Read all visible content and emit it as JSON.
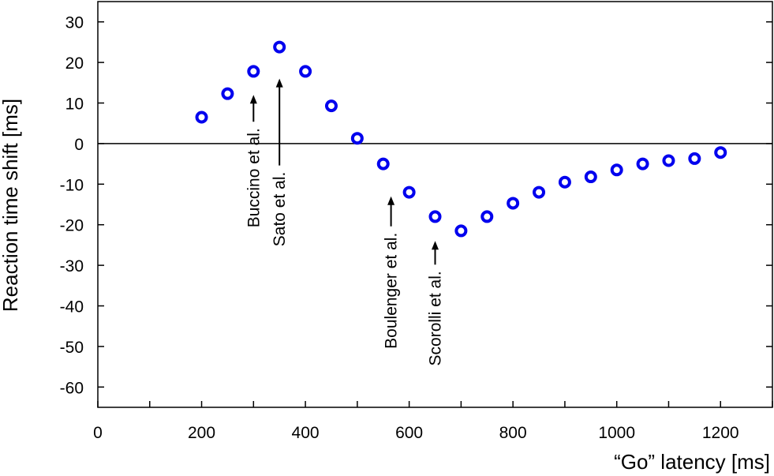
{
  "chart_data": {
    "type": "scatter",
    "xlabel": "“Go” latency  [ms]",
    "ylabel": "Reaction time shift  [ms]",
    "xlim": [
      0,
      1300
    ],
    "ylim": [
      -65,
      35
    ],
    "xticks": [
      0,
      100,
      200,
      300,
      400,
      500,
      600,
      700,
      800,
      900,
      1000,
      1100,
      1200,
      1300
    ],
    "xtick_labels": [
      "0",
      "",
      "200",
      "",
      "400",
      "",
      "600",
      "",
      "800",
      "",
      "1000",
      "",
      "1200",
      ""
    ],
    "yticks": [
      30,
      20,
      10,
      0,
      -10,
      -20,
      -30,
      -40,
      -50,
      -60
    ],
    "ytick_labels": [
      "30",
      "20",
      "10",
      "0",
      "-10",
      "-20",
      "-30",
      "-40",
      "-50",
      "-60"
    ],
    "marker_color": "#0000ee",
    "grid": false,
    "zero_line": true,
    "series": [
      {
        "x": [
          200,
          250,
          300,
          350,
          400,
          450,
          500,
          550,
          600,
          650,
          700,
          750,
          800,
          850,
          900,
          950,
          1000,
          1050,
          1100,
          1150,
          1200
        ],
        "y": [
          6.5,
          12.3,
          17.8,
          23.8,
          17.8,
          9.3,
          1.3,
          -5.0,
          -12.0,
          -18.0,
          -21.5,
          -18.0,
          -14.7,
          -12.0,
          -9.5,
          -8.2,
          -6.5,
          -5.0,
          -4.2,
          -3.7,
          -2.2
        ]
      }
    ],
    "annotations": [
      {
        "text": "Buccino et al.",
        "x": 300,
        "arrow_tip_y": 12
      },
      {
        "text": "Sato et al.",
        "x": 350,
        "arrow_tip_y": 16
      },
      {
        "text": "Boulenger et al.",
        "x": 565,
        "arrow_tip_y": -13
      },
      {
        "text": "Scorolli et al.",
        "x": 650,
        "arrow_tip_y": -24
      }
    ]
  }
}
